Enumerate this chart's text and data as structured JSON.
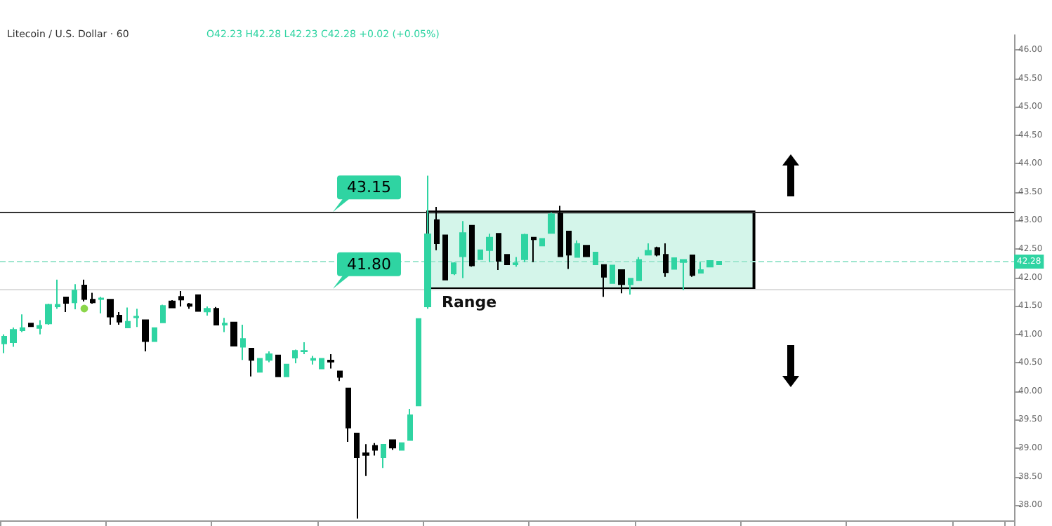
{
  "chart_data": {
    "type": "candlestick",
    "title": "Litecoin / U.S. Dollar · 60",
    "subtitle": "O42.23 H42.28 L42.23 C42.28 +0.02 (+0.05%)",
    "categories": [
      null,
      null,
      null,
      null,
      null,
      null,
      null,
      null,
      null,
      null,
      null,
      null,
      null,
      null,
      null,
      null,
      null,
      null,
      null,
      null,
      null,
      null,
      null,
      null,
      null,
      null,
      null,
      null,
      null,
      null,
      null,
      null,
      null,
      null,
      null,
      null,
      null,
      null,
      null,
      null,
      null,
      null,
      null,
      null,
      null,
      null,
      null,
      null,
      null,
      null,
      null,
      null,
      null,
      null,
      null,
      null,
      null,
      null,
      null,
      null,
      null,
      null,
      null,
      null,
      null,
      null,
      null,
      null,
      null,
      null,
      null,
      null,
      null,
      null,
      null,
      null,
      null,
      null,
      null,
      null,
      null,
      null,
      null,
      null,
      null,
      null,
      null,
      null,
      null,
      null,
      null,
      null,
      null,
      null,
      null,
      null,
      null,
      null,
      null,
      null,
      null,
      null,
      null,
      null,
      null,
      null,
      null,
      null,
      null,
      null,
      null,
      null,
      null,
      null,
      null
    ],
    "ohlc": [
      [
        40.84,
        41.0,
        40.67,
        40.96
      ],
      [
        40.86,
        41.12,
        40.78,
        41.08
      ],
      [
        41.07,
        41.35,
        41.04,
        41.11
      ],
      [
        41.19,
        41.2,
        41.13,
        41.14
      ],
      [
        41.11,
        41.25,
        41.0,
        41.15
      ],
      [
        41.19,
        41.54,
        41.17,
        41.52
      ],
      [
        41.49,
        41.96,
        41.45,
        41.52
      ],
      [
        41.65,
        41.66,
        41.39,
        41.55
      ],
      [
        41.56,
        41.88,
        41.44,
        41.77
      ],
      [
        41.86,
        41.96,
        41.58,
        41.62
      ],
      [
        41.61,
        41.73,
        41.54,
        41.56
      ],
      [
        41.62,
        41.66,
        41.37,
        41.63
      ],
      [
        41.61,
        41.61,
        41.17,
        41.31
      ],
      [
        41.33,
        41.39,
        41.17,
        41.22
      ],
      [
        41.12,
        41.47,
        41.12,
        41.22
      ],
      [
        41.3,
        41.45,
        41.13,
        41.31
      ],
      [
        41.25,
        41.25,
        40.7,
        40.88
      ],
      [
        40.88,
        41.11,
        40.88,
        41.11
      ],
      [
        41.21,
        41.52,
        41.2,
        41.5
      ],
      [
        41.58,
        41.6,
        41.47,
        41.47
      ],
      [
        41.66,
        41.76,
        41.49,
        41.61
      ],
      [
        41.53,
        41.55,
        41.45,
        41.5
      ],
      [
        41.69,
        41.69,
        41.41,
        41.41
      ],
      [
        41.4,
        41.49,
        41.33,
        41.45
      ],
      [
        41.45,
        41.48,
        41.17,
        41.17
      ],
      [
        41.17,
        41.29,
        41.04,
        41.19
      ],
      [
        41.21,
        41.21,
        40.8,
        40.8
      ],
      [
        40.78,
        41.17,
        40.55,
        40.92
      ],
      [
        40.75,
        40.75,
        40.26,
        40.55
      ],
      [
        40.34,
        40.57,
        40.34,
        40.57
      ],
      [
        40.55,
        40.7,
        40.51,
        40.65
      ],
      [
        40.63,
        40.63,
        40.26,
        40.26
      ],
      [
        40.26,
        40.47,
        40.26,
        40.47
      ],
      [
        40.59,
        40.73,
        40.49,
        40.71
      ],
      [
        40.7,
        40.86,
        40.65,
        40.71
      ],
      [
        40.55,
        40.62,
        40.47,
        40.57
      ],
      [
        40.4,
        40.57,
        40.4,
        40.57
      ],
      [
        40.54,
        40.65,
        40.4,
        40.52
      ],
      [
        40.35,
        40.35,
        40.18,
        40.25
      ],
      [
        40.05,
        40.05,
        39.11,
        39.36
      ],
      [
        39.26,
        39.26,
        37.76,
        38.84
      ],
      [
        38.91,
        39.07,
        38.51,
        38.88
      ],
      [
        39.04,
        39.09,
        38.87,
        38.97
      ],
      [
        38.84,
        39.06,
        38.65,
        39.06
      ],
      [
        39.14,
        39.14,
        38.97,
        39.01
      ],
      [
        38.97,
        39.1,
        38.97,
        39.09
      ],
      [
        39.14,
        39.69,
        39.14,
        39.58
      ],
      [
        39.75,
        41.27,
        39.75,
        41.27
      ],
      [
        41.49,
        43.79,
        41.45,
        42.76
      ],
      [
        43.01,
        43.24,
        42.48,
        42.6
      ],
      [
        42.74,
        42.74,
        41.96,
        41.96
      ],
      [
        42.07,
        42.27,
        42.04,
        42.25
      ],
      [
        42.37,
        42.99,
        41.99,
        42.78
      ],
      [
        42.91,
        42.91,
        42.19,
        42.21
      ],
      [
        42.32,
        42.48,
        42.32,
        42.48
      ],
      [
        42.48,
        42.77,
        42.27,
        42.7
      ],
      [
        42.77,
        42.77,
        42.13,
        42.29
      ],
      [
        42.4,
        42.4,
        42.23,
        42.23
      ],
      [
        42.23,
        42.36,
        42.19,
        42.25
      ],
      [
        42.32,
        42.77,
        42.27,
        42.75
      ],
      [
        42.7,
        42.7,
        42.27,
        42.67
      ],
      [
        42.56,
        42.68,
        42.56,
        42.68
      ],
      [
        42.78,
        43.14,
        42.77,
        43.11
      ],
      [
        43.12,
        43.26,
        42.36,
        42.37
      ],
      [
        42.81,
        42.81,
        42.15,
        42.4
      ],
      [
        42.36,
        42.65,
        42.36,
        42.59
      ],
      [
        42.56,
        42.56,
        42.37,
        42.37
      ],
      [
        42.23,
        42.44,
        42.23,
        42.44
      ],
      [
        42.22,
        42.22,
        41.66,
        42.01
      ],
      [
        41.9,
        42.21,
        41.9,
        42.21
      ],
      [
        42.13,
        42.13,
        41.72,
        41.88
      ],
      [
        41.88,
        41.98,
        41.7,
        41.98
      ],
      [
        41.95,
        42.36,
        41.95,
        42.31
      ],
      [
        42.4,
        42.6,
        42.4,
        42.47
      ],
      [
        42.52,
        42.54,
        42.37,
        42.4
      ],
      [
        42.4,
        42.6,
        42.01,
        42.09
      ],
      [
        42.15,
        42.34,
        42.15,
        42.34
      ],
      [
        42.27,
        42.31,
        41.78,
        42.31
      ],
      [
        42.39,
        42.39,
        42.01,
        42.04
      ],
      [
        42.08,
        42.27,
        42.07,
        42.13
      ],
      [
        42.19,
        42.29,
        42.19,
        42.29
      ],
      [
        42.23,
        42.28,
        42.23,
        42.28
      ],
      null,
      null,
      null,
      null,
      null,
      null,
      null,
      null,
      null,
      null,
      null,
      null,
      null,
      null,
      null,
      null,
      null,
      null,
      null,
      null,
      null,
      null,
      null,
      null,
      null,
      null,
      null,
      null,
      null,
      null,
      null,
      null,
      null
    ],
    "colors": [
      "#2fd4a2",
      "#2fd4a2",
      "#2fd4a2",
      "#000000",
      "#2fd4a2",
      "#2fd4a2",
      "#2fd4a2",
      "#000000",
      "#2fd4a2",
      "#000000",
      "#000000",
      "#2fd4a2",
      "#000000",
      "#000000",
      "#2fd4a2",
      "#2fd4a2",
      "#000000",
      "#2fd4a2",
      "#2fd4a2",
      "#000000",
      "#000000",
      "#000000",
      "#000000",
      "#2fd4a2",
      "#000000",
      "#2fd4a2",
      "#000000",
      "#2fd4a2",
      "#000000",
      "#2fd4a2",
      "#2fd4a2",
      "#000000",
      "#2fd4a2",
      "#2fd4a2",
      "#2fd4a2",
      "#2fd4a2",
      "#2fd4a2",
      "#000000",
      "#000000",
      "#000000",
      "#000000",
      "#000000",
      "#000000",
      "#2fd4a2",
      "#000000",
      "#2fd4a2",
      "#2fd4a2",
      "#2fd4a2",
      "#2fd4a2",
      "#000000",
      "#000000",
      "#2fd4a2",
      "#2fd4a2",
      "#000000",
      "#2fd4a2",
      "#2fd4a2",
      "#000000",
      "#000000",
      "#2fd4a2",
      "#2fd4a2",
      "#000000",
      "#2fd4a2",
      "#2fd4a2",
      "#000000",
      "#000000",
      "#2fd4a2",
      "#000000",
      "#2fd4a2",
      "#000000",
      "#2fd4a2",
      "#000000",
      "#2fd4a2",
      "#2fd4a2",
      "#2fd4a2",
      "#000000",
      "#000000",
      "#2fd4a2",
      "#2fd4a2",
      "#000000",
      "#2fd4a2",
      "#2fd4a2",
      "#2fd4a2",
      null,
      null,
      null,
      null,
      null,
      null,
      null,
      null,
      null,
      null,
      null,
      null,
      null,
      null,
      null,
      null,
      null,
      null,
      null,
      null,
      null,
      null,
      null,
      null,
      null,
      null,
      null,
      null,
      null,
      null,
      null,
      null,
      null
    ],
    "ylim": [
      37.73,
      46.26
    ],
    "yticks": [
      {
        "value": 38,
        "label": "38.00"
      },
      {
        "value": 38.5,
        "label": "38.50"
      },
      {
        "value": 39,
        "label": "39.00"
      },
      {
        "value": 39.5,
        "label": "39.50"
      },
      {
        "value": 40,
        "label": "40.00"
      },
      {
        "value": 40.5,
        "label": "40.50"
      },
      {
        "value": 41,
        "label": "41.00"
      },
      {
        "value": 41.5,
        "label": "41.50"
      },
      {
        "value": 42,
        "label": "42.00"
      },
      {
        "value": 42.5,
        "label": "42.50"
      },
      {
        "value": 43,
        "label": "43.00"
      },
      {
        "value": 43.5,
        "label": "43.50"
      },
      {
        "value": 44,
        "label": "44.00"
      },
      {
        "value": 44.5,
        "label": "44.50"
      },
      {
        "value": 45,
        "label": "45.00"
      },
      {
        "value": 45.5,
        "label": "45.50"
      },
      {
        "value": 46,
        "label": "46.00"
      }
    ],
    "ref_lines": [
      {
        "axis": "y",
        "value": 43.15,
        "label": "43.15",
        "color": "#333333",
        "line_style": "solid"
      },
      {
        "axis": "y",
        "value": 41.8,
        "label": "41.80",
        "color": "#dddddd",
        "line_style": "solid"
      },
      {
        "axis": "y",
        "value": 42.28,
        "label": "42.28",
        "color": "#9fe6cf",
        "line_style": "dashed"
      }
    ],
    "bands": [
      {
        "axis": "y",
        "from": 41.8,
        "to": 43.15,
        "label": "Range",
        "color": "#d4f5ea"
      }
    ],
    "tick_labels": "y",
    "grid": false
  }
}
